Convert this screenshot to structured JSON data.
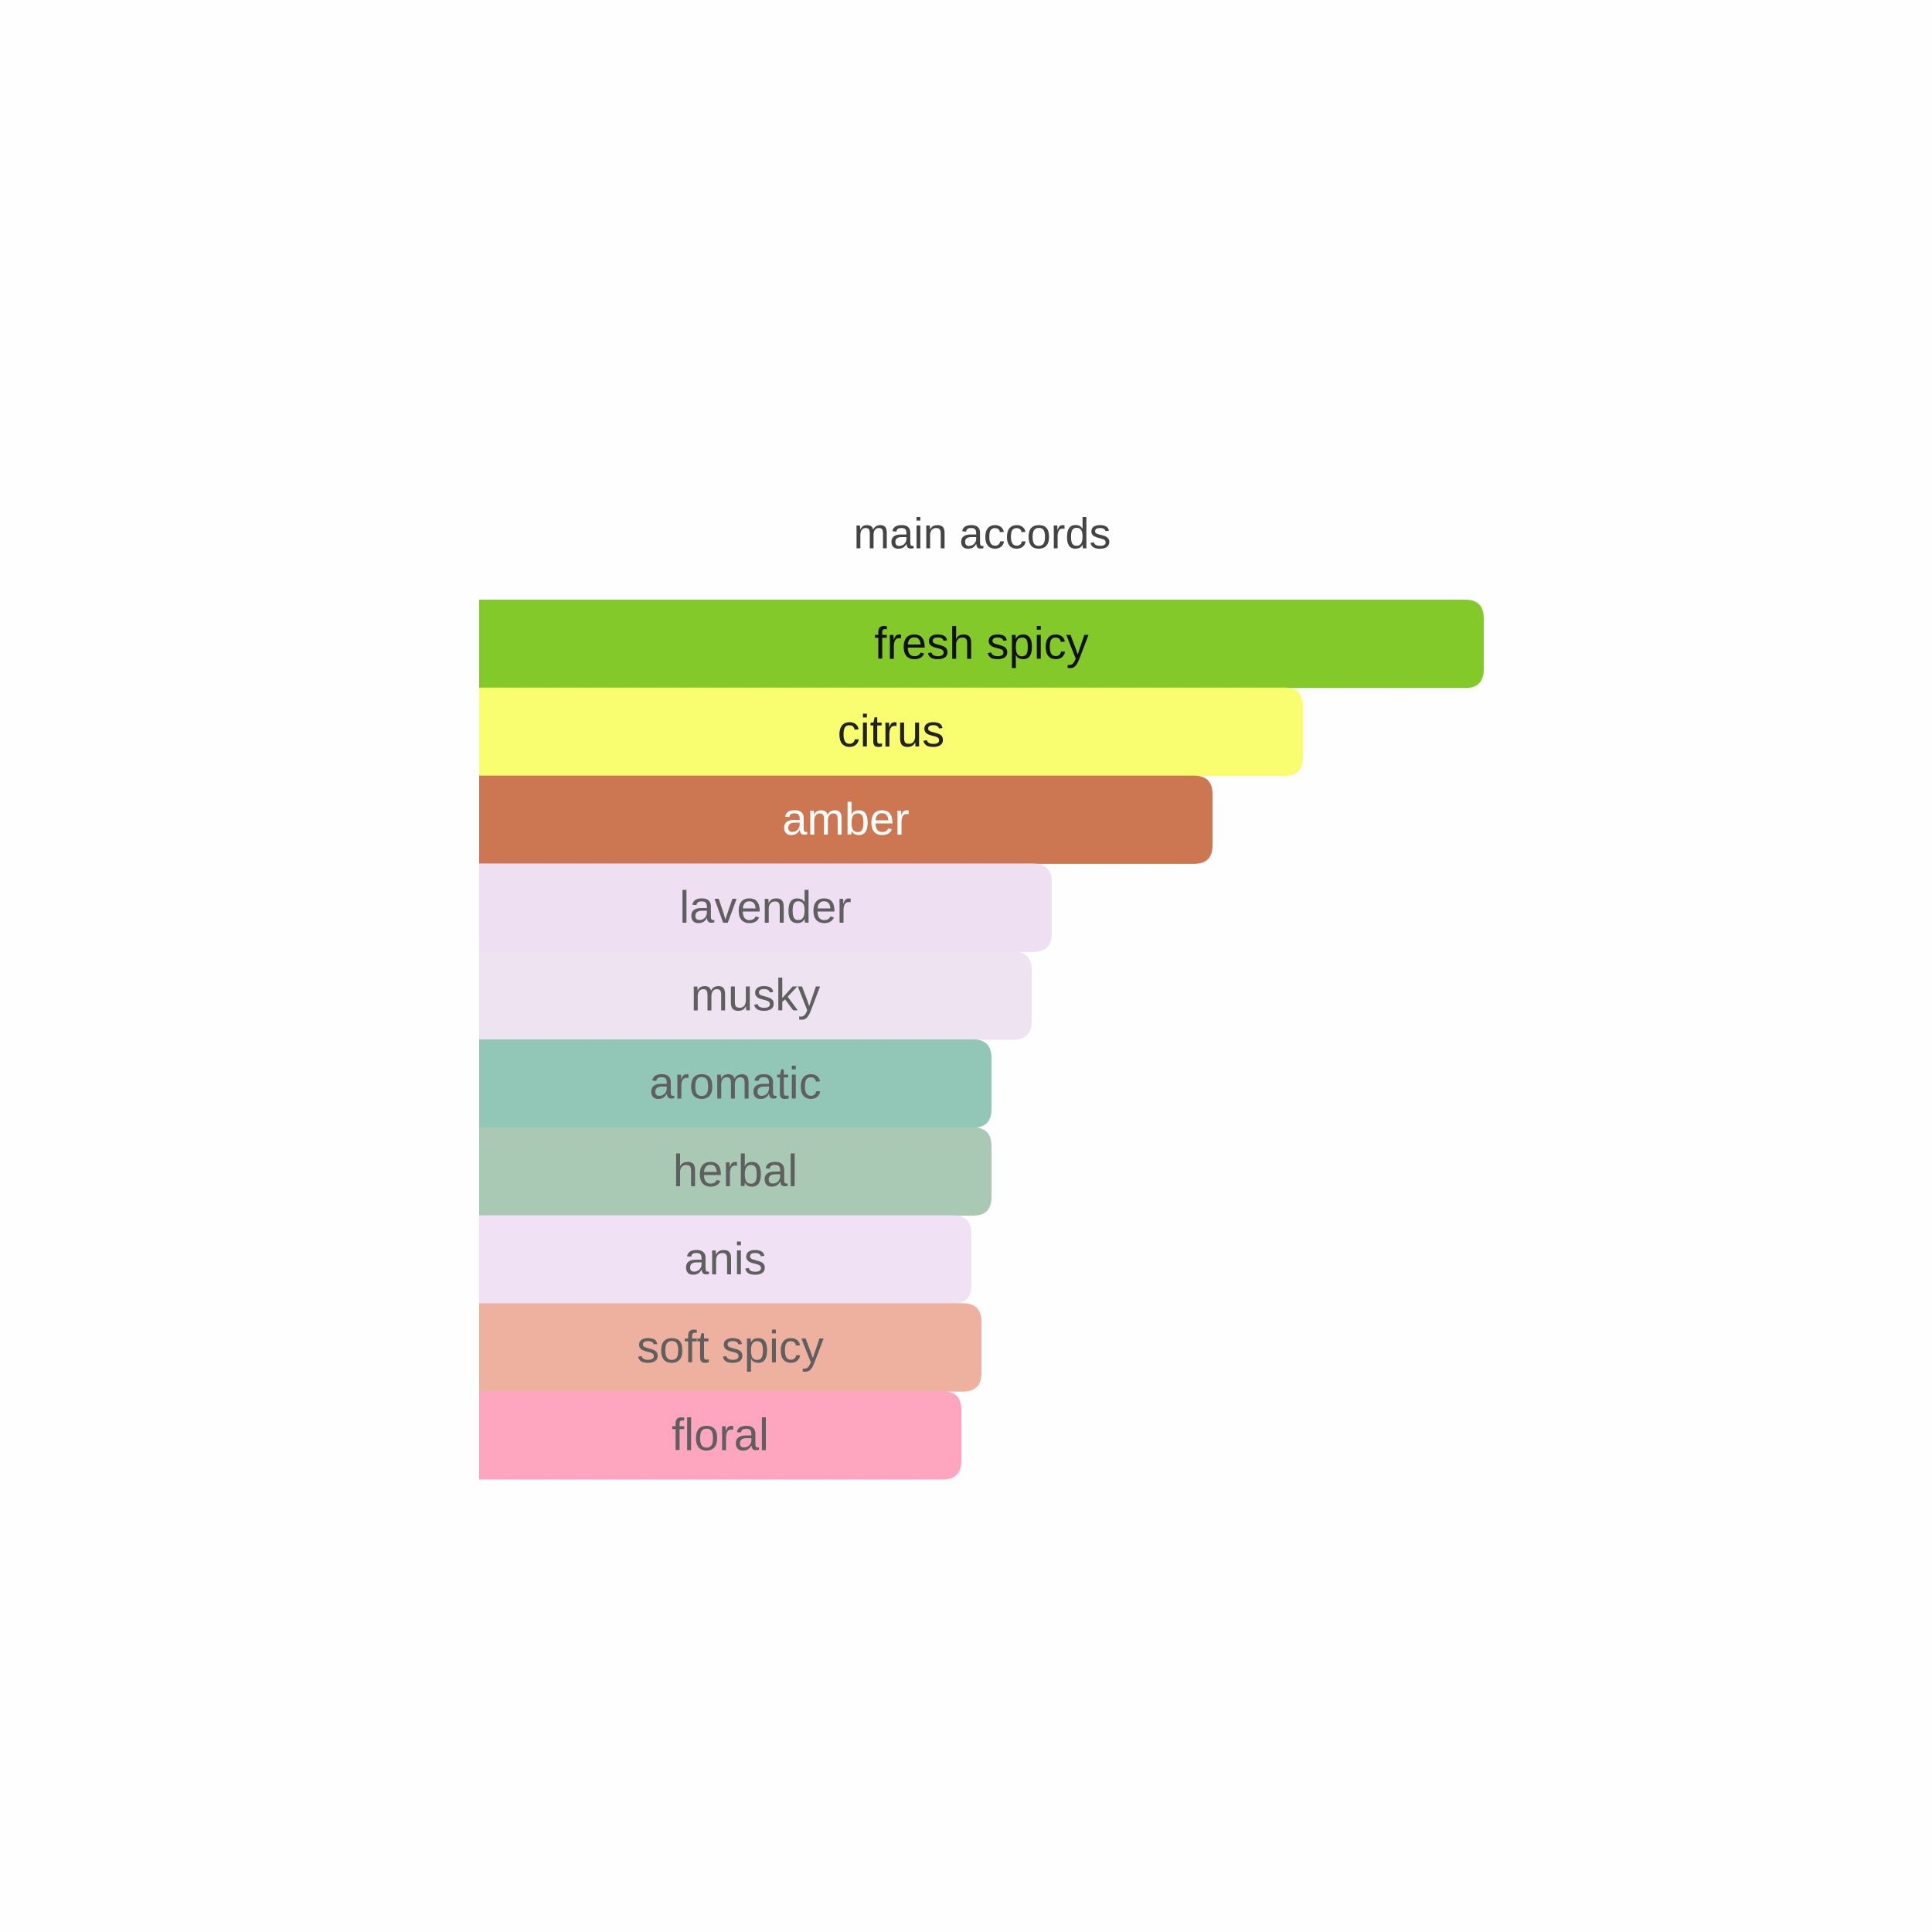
{
  "chart_data": {
    "type": "bar",
    "orientation": "horizontal",
    "title": "main accords",
    "categories": [
      "fresh spicy",
      "citrus",
      "amber",
      "lavender",
      "musky",
      "aromatic",
      "herbal",
      "anis",
      "soft spicy",
      "floral"
    ],
    "values": [
      100,
      82,
      73,
      57,
      55,
      51,
      51,
      49,
      50,
      48
    ],
    "colors": [
      "#84c92a",
      "#f8fe6f",
      "#cc7752",
      "#eedff3",
      "#eee3f1",
      "#92c7b8",
      "#a9c9b4",
      "#f0e2f4",
      "#eeb19f",
      "#fea5bf"
    ],
    "label_colors": [
      "#111111",
      "#222222",
      "#ffffff",
      "#5f5f5f",
      "#5f5f5f",
      "#5f5f5f",
      "#5f5f5f",
      "#5f5f5f",
      "#5f5f5f",
      "#5f5f5f"
    ],
    "xlim": [
      0,
      100
    ]
  }
}
